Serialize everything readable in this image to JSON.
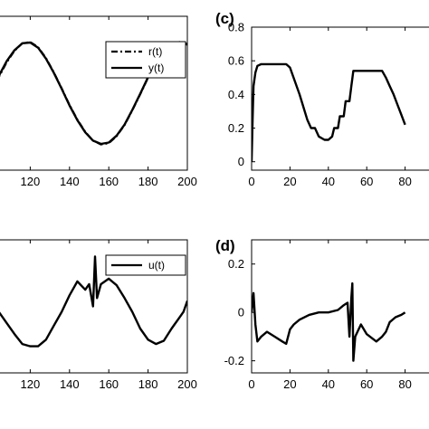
{
  "chart_data": [
    {
      "type": "line",
      "panel": "top-left",
      "panel_label": "",
      "xlim": [
        100,
        200
      ],
      "ylim": [
        -1.2,
        1.2
      ],
      "xticks": [
        120,
        140,
        160,
        180,
        200
      ],
      "xtick_labels": [
        "120",
        "140",
        "160",
        "180",
        "200"
      ],
      "legend_placement": "top-right",
      "series": [
        {
          "name": "r(t)",
          "style": "dash-dot",
          "x": [
            100,
            104,
            108,
            112,
            116,
            120,
            124,
            128,
            132,
            136,
            140,
            144,
            148,
            152,
            156,
            160,
            164,
            168,
            172,
            176,
            180,
            184,
            188,
            192,
            196,
            200
          ],
          "y": [
            0.0,
            0.25,
            0.48,
            0.66,
            0.78,
            0.8,
            0.72,
            0.55,
            0.33,
            0.08,
            -0.18,
            -0.41,
            -0.6,
            -0.74,
            -0.8,
            -0.78,
            -0.67,
            -0.5,
            -0.27,
            -0.02,
            0.24,
            0.46,
            0.64,
            0.76,
            0.8,
            0.77
          ]
        },
        {
          "name": "y(t)",
          "style": "solid",
          "x": [
            100,
            104,
            108,
            112,
            116,
            120,
            124,
            128,
            132,
            136,
            140,
            144,
            148,
            152,
            156,
            160,
            164,
            168,
            172,
            176,
            180,
            184,
            188,
            192,
            196,
            200
          ],
          "y": [
            0.02,
            0.27,
            0.5,
            0.67,
            0.78,
            0.79,
            0.71,
            0.54,
            0.32,
            0.07,
            -0.19,
            -0.42,
            -0.61,
            -0.74,
            -0.79,
            -0.77,
            -0.66,
            -0.49,
            -0.26,
            -0.01,
            0.25,
            0.47,
            0.65,
            0.76,
            0.79,
            0.76
          ]
        }
      ]
    },
    {
      "type": "line",
      "panel": "top-right",
      "panel_label": "(c)",
      "xlim": [
        0,
        100
      ],
      "ylim": [
        -0.05,
        0.8
      ],
      "xticks": [
        0,
        20,
        40,
        60,
        80
      ],
      "xtick_labels": [
        "0",
        "20",
        "40",
        "60",
        "80"
      ],
      "yticks": [
        0,
        0.2,
        0.4,
        0.6,
        0.8
      ],
      "ytick_labels": [
        "0",
        "0.2",
        "0.4",
        "0.6",
        "0.8"
      ],
      "series": [
        {
          "style": "solid",
          "x": [
            0,
            0.5,
            1,
            2,
            3,
            5,
            10,
            15,
            18,
            20,
            25,
            29,
            31,
            33,
            35,
            38,
            40,
            42,
            43,
            45,
            46,
            48,
            49,
            51,
            52,
            53,
            60,
            65,
            68,
            70,
            72,
            74,
            76,
            78,
            80
          ],
          "y": [
            0.0,
            0.25,
            0.45,
            0.53,
            0.57,
            0.58,
            0.58,
            0.58,
            0.58,
            0.56,
            0.4,
            0.25,
            0.2,
            0.2,
            0.15,
            0.13,
            0.13,
            0.15,
            0.2,
            0.2,
            0.27,
            0.27,
            0.36,
            0.36,
            0.45,
            0.54,
            0.54,
            0.54,
            0.54,
            0.5,
            0.45,
            0.4,
            0.34,
            0.28,
            0.22
          ]
        }
      ]
    },
    {
      "type": "line",
      "panel": "bottom-left",
      "panel_label": "",
      "xlim": [
        100,
        200
      ],
      "ylim": [
        -1.2,
        1.2
      ],
      "xticks": [
        120,
        140,
        160,
        180,
        200
      ],
      "xtick_labels": [
        "120",
        "140",
        "160",
        "180",
        "200"
      ],
      "legend_placement": "top-right",
      "series": [
        {
          "name": "u(t)",
          "style": "solid",
          "x": [
            100,
            104,
            108,
            112,
            116,
            120,
            124,
            128,
            132,
            136,
            140,
            144,
            148,
            150,
            152,
            153,
            154,
            156,
            160,
            164,
            168,
            172,
            176,
            180,
            184,
            188,
            192,
            196,
            198,
            200
          ],
          "y": [
            0.05,
            -0.1,
            -0.3,
            -0.5,
            -0.68,
            -0.72,
            -0.72,
            -0.6,
            -0.35,
            -0.1,
            0.2,
            0.45,
            0.3,
            0.4,
            0.0,
            0.9,
            0.15,
            0.4,
            0.5,
            0.38,
            0.15,
            -0.1,
            -0.4,
            -0.6,
            -0.68,
            -0.62,
            -0.4,
            -0.2,
            -0.1,
            0.1
          ]
        }
      ]
    },
    {
      "type": "line",
      "panel": "bottom-right",
      "panel_label": "(d)",
      "xlim": [
        0,
        100
      ],
      "ylim": [
        -0.25,
        0.3
      ],
      "xticks": [
        0,
        20,
        40,
        60,
        80
      ],
      "xtick_labels": [
        "0",
        "20",
        "40",
        "60",
        "80"
      ],
      "yticks": [
        -0.2,
        0,
        0.2
      ],
      "ytick_labels": [
        "-0.2",
        "0",
        "0.2"
      ],
      "series": [
        {
          "style": "solid",
          "x": [
            0,
            1,
            2,
            3,
            5,
            8,
            12,
            16,
            18,
            20,
            22,
            25,
            30,
            35,
            40,
            45,
            48,
            50,
            51,
            52,
            52.5,
            53,
            54,
            57,
            60,
            65,
            68,
            70,
            72,
            75,
            78,
            80
          ],
          "y": [
            0.0,
            0.08,
            -0.05,
            -0.12,
            -0.1,
            -0.08,
            -0.1,
            -0.12,
            -0.13,
            -0.07,
            -0.05,
            -0.03,
            -0.01,
            0.0,
            0.0,
            0.01,
            0.03,
            0.04,
            -0.1,
            0.06,
            0.12,
            -0.2,
            -0.1,
            -0.05,
            -0.09,
            -0.12,
            -0.1,
            -0.08,
            -0.04,
            -0.02,
            -0.01,
            0.0
          ]
        }
      ]
    }
  ]
}
